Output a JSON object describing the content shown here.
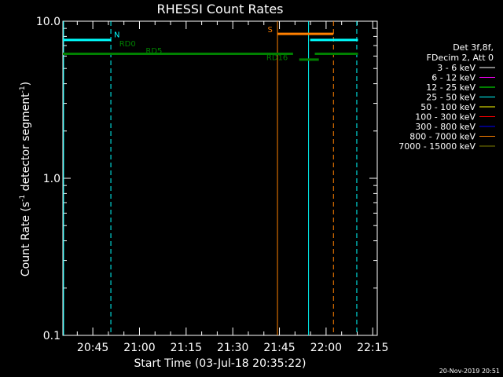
{
  "chart_data": {
    "type": "line",
    "title": "RHESSI Count Rates",
    "xlabel": "Start Time (03-Jul-18 20:35:22)",
    "ylabel_main": "Count Rate (s",
    "ylabel_sup1": "-1",
    "ylabel_mid": " detector segment",
    "ylabel_sup2": "-1",
    "ylabel_end": ")",
    "y_scale": "log",
    "ylim": [
      0.1,
      10.0
    ],
    "xlim_minutes": [
      20.5833,
      121.6667
    ],
    "x_ticks": [
      {
        "minute": 45,
        "label": "20:45"
      },
      {
        "minute": 60,
        "label": "21:00"
      },
      {
        "minute": 75,
        "label": "21:15"
      },
      {
        "minute": 90,
        "label": "21:30"
      },
      {
        "minute": 105,
        "label": "21:45"
      },
      {
        "minute": 120,
        "label": "22:00"
      },
      {
        "minute": 135,
        "label": "22:15"
      }
    ],
    "y_ticks": [
      {
        "value": 10.0,
        "label": "10.0"
      },
      {
        "value": 1.0,
        "label": "1.0"
      },
      {
        "value": 0.1,
        "label": "0.1"
      }
    ],
    "series": [
      {
        "color": "#00ffff",
        "segments": [
          [
            35.37,
            50.93,
            7.6
          ],
          [
            114.87,
            130.25,
            7.6
          ]
        ]
      },
      {
        "color": "#008000",
        "segments": [
          [
            35.37,
            109.37,
            6.2
          ],
          [
            111.37,
            117.67,
            5.7
          ],
          [
            116.37,
            130.25,
            6.2
          ]
        ]
      },
      {
        "color": "#ff8000",
        "segments": [
          [
            104.37,
            122.37,
            8.3
          ]
        ]
      }
    ],
    "vertical_lines": [
      {
        "minute": 35.6,
        "color": "#00ffff",
        "dashed": false
      },
      {
        "minute": 50.8,
        "color": "#00ffff",
        "dashed": true
      },
      {
        "minute": 104.37,
        "color": "#ff8000",
        "dashed": false
      },
      {
        "minute": 114.37,
        "color": "#00ffff",
        "dashed": false
      },
      {
        "minute": 122.37,
        "color": "#ff8000",
        "dashed": true
      },
      {
        "minute": 129.87,
        "color": "#00ffff",
        "dashed": true
      }
    ],
    "annotations": [
      {
        "text": "N",
        "minute": 51.8,
        "value": 7.9,
        "color": "#00ffff"
      },
      {
        "text": "RD0",
        "minute": 53.5,
        "value": 6.9,
        "color": "#008000"
      },
      {
        "text": "RD5",
        "minute": 62.0,
        "value": 6.25,
        "color": "#008000"
      },
      {
        "text": "S",
        "minute": 101.2,
        "value": 8.5,
        "color": "#ff8000"
      },
      {
        "text": "RD16",
        "minute": 100.8,
        "value": 5.65,
        "color": "#008000"
      }
    ],
    "legend_placement": "right",
    "legend_header": [
      "Det 3f,8f,",
      "FDecim 2, Att 0"
    ],
    "legend": [
      {
        "label": "3 - 6 keV",
        "color": "#ffffff"
      },
      {
        "label": "6 - 12 keV",
        "color": "#ff00ff"
      },
      {
        "label": "12 - 25 keV",
        "color": "#00ff00"
      },
      {
        "label": "25 - 50 keV",
        "color": "#00ffff"
      },
      {
        "label": "50 - 100 keV",
        "color": "#ffff00"
      },
      {
        "label": "100 - 300 keV",
        "color": "#ff0000"
      },
      {
        "label": "300 - 800 keV",
        "color": "#0000ff"
      },
      {
        "label": "800 - 7000 keV",
        "color": "#ff8000"
      },
      {
        "label": "7000 - 15000 keV",
        "color": "#808000"
      }
    ],
    "timestamp": "20-Nov-2019 20:51"
  }
}
